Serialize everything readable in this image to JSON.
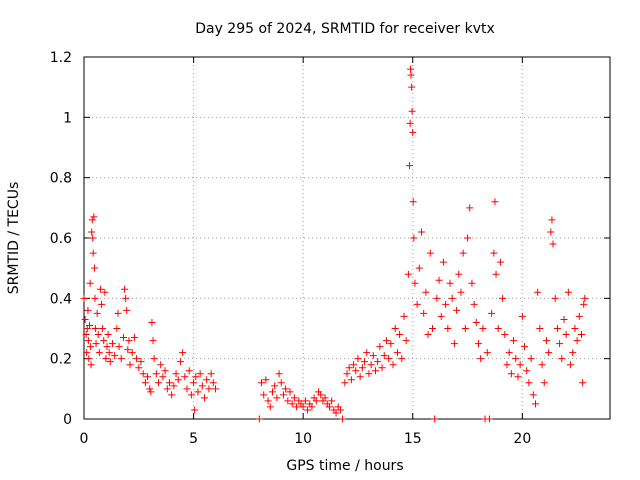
{
  "chart_data": {
    "type": "scatter",
    "title": "Day 295 of 2024, SRMTID for receiver kvtx",
    "xlabel": "GPS time / hours",
    "ylabel": "SRMTID / TECUs",
    "xlim": [
      0,
      24
    ],
    "ylim": [
      0,
      1.2
    ],
    "x_ticks": [
      0,
      5,
      10,
      15,
      20
    ],
    "x_tick_labels": [
      "0",
      "5",
      "10",
      "15",
      "20"
    ],
    "y_ticks": [
      0,
      0.2,
      0.4,
      0.6,
      0.8,
      1.0,
      1.2
    ],
    "y_tick_labels": [
      "0",
      "0.2",
      "0.4",
      "0.6",
      "0.8",
      "1",
      "1.2"
    ],
    "grid": true,
    "legend": "none",
    "marker": "+",
    "color": "#ff0000",
    "series": [
      {
        "name": "SRMTID",
        "points": [
          [
            0.0,
            0.4
          ],
          [
            0.05,
            0.33
          ],
          [
            0.1,
            0.28
          ],
          [
            0.12,
            0.22
          ],
          [
            0.15,
            0.3
          ],
          [
            0.18,
            0.36
          ],
          [
            0.2,
            0.26
          ],
          [
            0.22,
            0.2
          ],
          [
            0.25,
            0.31
          ],
          [
            0.28,
            0.45
          ],
          [
            0.3,
            0.24
          ],
          [
            0.32,
            0.18
          ],
          [
            0.35,
            0.62
          ],
          [
            0.38,
            0.66
          ],
          [
            0.4,
            0.6
          ],
          [
            0.42,
            0.55
          ],
          [
            0.45,
            0.67
          ],
          [
            0.48,
            0.5
          ],
          [
            0.5,
            0.4
          ],
          [
            0.52,
            0.3
          ],
          [
            0.55,
            0.25
          ],
          [
            0.6,
            0.35
          ],
          [
            0.65,
            0.28
          ],
          [
            0.7,
            0.22
          ],
          [
            0.75,
            0.43
          ],
          [
            0.8,
            0.38
          ],
          [
            0.85,
            0.3
          ],
          [
            0.9,
            0.26
          ],
          [
            0.95,
            0.42
          ],
          [
            1.0,
            0.2
          ],
          [
            1.05,
            0.24
          ],
          [
            1.1,
            0.28
          ],
          [
            1.15,
            0.22
          ],
          [
            1.2,
            0.19
          ],
          [
            1.3,
            0.25
          ],
          [
            1.4,
            0.21
          ],
          [
            1.5,
            0.3
          ],
          [
            1.55,
            0.35
          ],
          [
            1.6,
            0.24
          ],
          [
            1.7,
            0.2
          ],
          [
            1.8,
            0.27
          ],
          [
            1.85,
            0.43
          ],
          [
            1.9,
            0.4
          ],
          [
            1.95,
            0.36
          ],
          [
            2.0,
            0.23
          ],
          [
            2.05,
            0.26
          ],
          [
            2.1,
            0.18
          ],
          [
            2.2,
            0.22
          ],
          [
            2.3,
            0.27
          ],
          [
            2.4,
            0.2
          ],
          [
            2.5,
            0.17
          ],
          [
            2.6,
            0.19
          ],
          [
            2.7,
            0.15
          ],
          [
            2.8,
            0.12
          ],
          [
            2.9,
            0.14
          ],
          [
            3.0,
            0.1
          ],
          [
            3.05,
            0.09
          ],
          [
            3.1,
            0.32
          ],
          [
            3.15,
            0.26
          ],
          [
            3.2,
            0.2
          ],
          [
            3.3,
            0.15
          ],
          [
            3.4,
            0.12
          ],
          [
            3.5,
            0.18
          ],
          [
            3.6,
            0.14
          ],
          [
            3.7,
            0.16
          ],
          [
            3.8,
            0.1
          ],
          [
            3.9,
            0.12
          ],
          [
            4.0,
            0.08
          ],
          [
            4.1,
            0.11
          ],
          [
            4.2,
            0.15
          ],
          [
            4.3,
            0.13
          ],
          [
            4.4,
            0.19
          ],
          [
            4.5,
            0.22
          ],
          [
            4.6,
            0.14
          ],
          [
            4.7,
            0.1
          ],
          [
            4.8,
            0.16
          ],
          [
            4.9,
            0.08
          ],
          [
            5.0,
            0.12
          ],
          [
            5.05,
            0.03
          ],
          [
            5.1,
            0.14
          ],
          [
            5.2,
            0.09
          ],
          [
            5.3,
            0.15
          ],
          [
            5.4,
            0.11
          ],
          [
            5.5,
            0.07
          ],
          [
            5.6,
            0.13
          ],
          [
            5.7,
            0.1
          ],
          [
            5.8,
            0.15
          ],
          [
            5.9,
            0.12
          ],
          [
            6.0,
            0.1
          ],
          [
            8.0,
            0.0
          ],
          [
            8.1,
            0.12
          ],
          [
            8.2,
            0.08
          ],
          [
            8.3,
            0.13
          ],
          [
            8.4,
            0.06
          ],
          [
            8.5,
            0.04
          ],
          [
            8.6,
            0.09
          ],
          [
            8.7,
            0.11
          ],
          [
            8.8,
            0.07
          ],
          [
            8.9,
            0.15
          ],
          [
            9.0,
            0.12
          ],
          [
            9.1,
            0.08
          ],
          [
            9.2,
            0.1
          ],
          [
            9.3,
            0.06
          ],
          [
            9.4,
            0.09
          ],
          [
            9.5,
            0.05
          ],
          [
            9.6,
            0.07
          ],
          [
            9.7,
            0.04
          ],
          [
            9.8,
            0.06
          ],
          [
            9.9,
            0.05
          ],
          [
            10.0,
            0.04
          ],
          [
            10.1,
            0.06
          ],
          [
            10.2,
            0.03
          ],
          [
            10.3,
            0.05
          ],
          [
            10.4,
            0.04
          ],
          [
            10.5,
            0.07
          ],
          [
            10.6,
            0.06
          ],
          [
            10.7,
            0.09
          ],
          [
            10.8,
            0.08
          ],
          [
            10.9,
            0.06
          ],
          [
            11.0,
            0.07
          ],
          [
            11.1,
            0.05
          ],
          [
            11.2,
            0.04
          ],
          [
            11.3,
            0.06
          ],
          [
            11.4,
            0.03
          ],
          [
            11.5,
            0.02
          ],
          [
            11.6,
            0.04
          ],
          [
            11.7,
            0.03
          ],
          [
            11.8,
            0.0
          ],
          [
            11.9,
            0.12
          ],
          [
            12.0,
            0.15
          ],
          [
            12.1,
            0.17
          ],
          [
            12.2,
            0.13
          ],
          [
            12.3,
            0.18
          ],
          [
            12.4,
            0.16
          ],
          [
            12.5,
            0.2
          ],
          [
            12.6,
            0.14
          ],
          [
            12.7,
            0.17
          ],
          [
            12.8,
            0.19
          ],
          [
            12.9,
            0.22
          ],
          [
            13.0,
            0.15
          ],
          [
            13.1,
            0.18
          ],
          [
            13.2,
            0.21
          ],
          [
            13.3,
            0.16
          ],
          [
            13.4,
            0.19
          ],
          [
            13.5,
            0.24
          ],
          [
            13.6,
            0.17
          ],
          [
            13.7,
            0.21
          ],
          [
            13.8,
            0.26
          ],
          [
            13.9,
            0.2
          ],
          [
            14.0,
            0.25
          ],
          [
            14.1,
            0.18
          ],
          [
            14.2,
            0.3
          ],
          [
            14.3,
            0.22
          ],
          [
            14.4,
            0.28
          ],
          [
            14.5,
            0.2
          ],
          [
            14.6,
            0.34
          ],
          [
            14.7,
            0.26
          ],
          [
            14.8,
            0.48
          ],
          [
            14.85,
            0.84
          ],
          [
            14.88,
            0.98
          ],
          [
            14.9,
            1.16
          ],
          [
            14.92,
            1.14
          ],
          [
            14.95,
            1.1
          ],
          [
            14.97,
            1.02
          ],
          [
            15.0,
            0.95
          ],
          [
            15.02,
            0.72
          ],
          [
            15.05,
            0.6
          ],
          [
            15.1,
            0.45
          ],
          [
            15.2,
            0.38
          ],
          [
            15.3,
            0.5
          ],
          [
            15.4,
            0.62
          ],
          [
            15.5,
            0.35
          ],
          [
            15.6,
            0.42
          ],
          [
            15.7,
            0.28
          ],
          [
            15.8,
            0.55
          ],
          [
            15.9,
            0.3
          ],
          [
            16.0,
            0.0
          ],
          [
            16.1,
            0.4
          ],
          [
            16.2,
            0.46
          ],
          [
            16.3,
            0.34
          ],
          [
            16.4,
            0.52
          ],
          [
            16.5,
            0.38
          ],
          [
            16.6,
            0.3
          ],
          [
            16.7,
            0.45
          ],
          [
            16.8,
            0.4
          ],
          [
            16.9,
            0.25
          ],
          [
            17.0,
            0.36
          ],
          [
            17.1,
            0.48
          ],
          [
            17.2,
            0.42
          ],
          [
            17.3,
            0.55
          ],
          [
            17.4,
            0.3
          ],
          [
            17.5,
            0.6
          ],
          [
            17.6,
            0.7
          ],
          [
            17.7,
            0.45
          ],
          [
            17.8,
            0.38
          ],
          [
            17.9,
            0.32
          ],
          [
            18.0,
            0.25
          ],
          [
            18.1,
            0.2
          ],
          [
            18.2,
            0.3
          ],
          [
            18.3,
            0.0
          ],
          [
            18.4,
            0.22
          ],
          [
            18.5,
            0.0
          ],
          [
            18.6,
            0.35
          ],
          [
            18.7,
            0.55
          ],
          [
            18.75,
            0.72
          ],
          [
            18.8,
            0.48
          ],
          [
            18.9,
            0.3
          ],
          [
            19.0,
            0.52
          ],
          [
            19.1,
            0.4
          ],
          [
            19.2,
            0.28
          ],
          [
            19.3,
            0.18
          ],
          [
            19.4,
            0.22
          ],
          [
            19.5,
            0.15
          ],
          [
            19.6,
            0.26
          ],
          [
            19.7,
            0.2
          ],
          [
            19.8,
            0.14
          ],
          [
            19.9,
            0.18
          ],
          [
            20.0,
            0.34
          ],
          [
            20.1,
            0.24
          ],
          [
            20.2,
            0.16
          ],
          [
            20.3,
            0.12
          ],
          [
            20.4,
            0.2
          ],
          [
            20.5,
            0.08
          ],
          [
            20.6,
            0.05
          ],
          [
            20.7,
            0.42
          ],
          [
            20.8,
            0.3
          ],
          [
            20.9,
            0.18
          ],
          [
            21.0,
            0.12
          ],
          [
            21.1,
            0.26
          ],
          [
            21.2,
            0.22
          ],
          [
            21.3,
            0.62
          ],
          [
            21.35,
            0.66
          ],
          [
            21.4,
            0.58
          ],
          [
            21.5,
            0.4
          ],
          [
            21.6,
            0.3
          ],
          [
            21.7,
            0.25
          ],
          [
            21.8,
            0.2
          ],
          [
            21.9,
            0.33
          ],
          [
            22.0,
            0.28
          ],
          [
            22.1,
            0.42
          ],
          [
            22.2,
            0.18
          ],
          [
            22.3,
            0.22
          ],
          [
            22.4,
            0.3
          ],
          [
            22.5,
            0.26
          ],
          [
            22.6,
            0.34
          ],
          [
            22.7,
            0.28
          ],
          [
            22.75,
            0.12
          ],
          [
            22.8,
            0.38
          ],
          [
            22.85,
            0.4
          ]
        ]
      }
    ]
  }
}
